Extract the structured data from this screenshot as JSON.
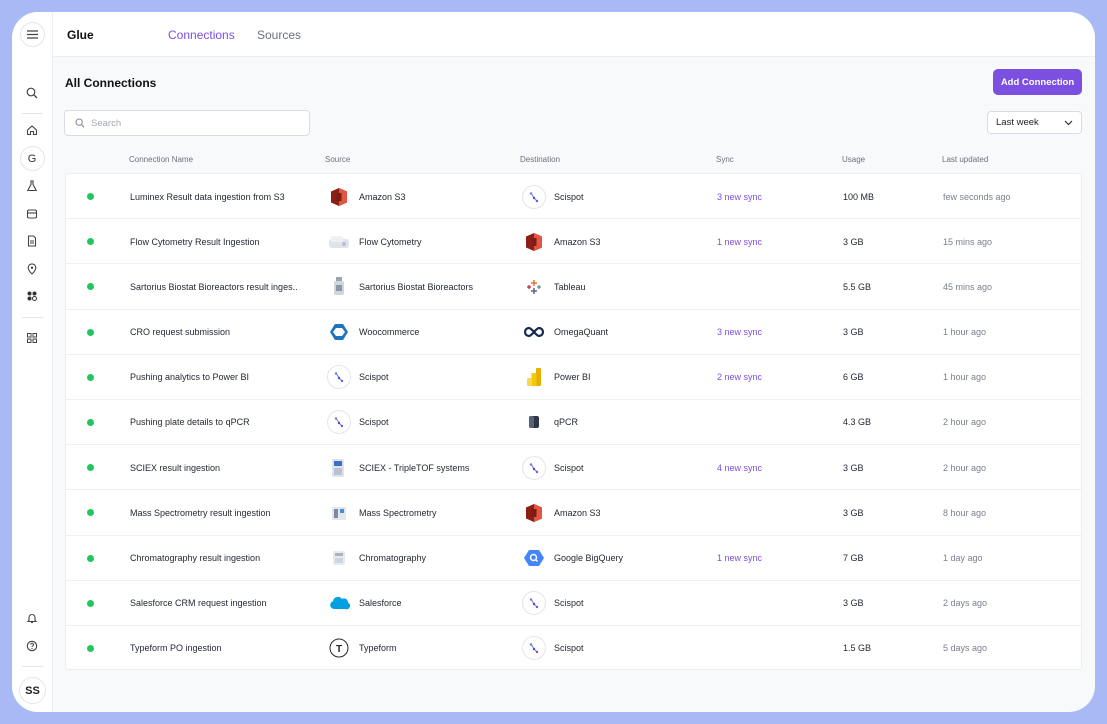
{
  "app": {
    "brand": "Glue"
  },
  "nav": {
    "tabs": [
      {
        "label": "Connections",
        "active": true
      },
      {
        "label": "Sources",
        "active": false
      }
    ]
  },
  "sidebar": {
    "workspace_letter": "G",
    "avatar_initials": "SS"
  },
  "main": {
    "title": "All Connections",
    "add_button_label": "Add Connection",
    "search_placeholder": "Search",
    "filter": {
      "selected": "Last week"
    }
  },
  "table": {
    "columns": [
      "Connection Name",
      "Source",
      "Destination",
      "Sync",
      "Usage",
      "Last updated"
    ],
    "rows": [
      {
        "name": "Luminex Result data ingestion from S3",
        "source": "Amazon S3",
        "source_icon": "amazon-s3",
        "destination": "Scispot",
        "destination_icon": "scispot",
        "sync": "3 new sync",
        "usage": "100 MB",
        "updated": "few seconds ago"
      },
      {
        "name": "Flow Cytometry Result Ingestion",
        "source": "Flow Cytometry",
        "source_icon": "flow-cytometry",
        "destination": "Amazon S3",
        "destination_icon": "amazon-s3",
        "sync": "1 new sync",
        "usage": "3 GB",
        "updated": "15 mins ago"
      },
      {
        "name": "Sartorius Biostat Bioreactors result inges..",
        "source": "Sartorius Biostat Bioreactors",
        "source_icon": "bioreactor",
        "destination": "Tableau",
        "destination_icon": "tableau",
        "sync": "",
        "usage": "5.5 GB",
        "updated": "45 mins ago"
      },
      {
        "name": "CRO request submission",
        "source": "Woocommerce",
        "source_icon": "woocommerce",
        "destination": "OmegaQuant",
        "destination_icon": "omegaquant",
        "sync": "3 new sync",
        "usage": "3 GB",
        "updated": "1 hour ago"
      },
      {
        "name": "Pushing analytics to Power BI",
        "source": "Scispot",
        "source_icon": "scispot",
        "destination": "Power BI",
        "destination_icon": "power-bi",
        "sync": "2 new sync",
        "usage": "6 GB",
        "updated": "1 hour ago"
      },
      {
        "name": "Pushing plate details to qPCR",
        "source": "Scispot",
        "source_icon": "scispot",
        "destination": "qPCR",
        "destination_icon": "qpcr",
        "sync": "",
        "usage": "4.3 GB",
        "updated": "2 hour ago"
      },
      {
        "name": "SCIEX result ingestion",
        "source": "SCIEX - TripleTOF systems",
        "source_icon": "sciex",
        "destination": "Scispot",
        "destination_icon": "scispot",
        "sync": "4 new sync",
        "usage": "3 GB",
        "updated": "2 hour ago"
      },
      {
        "name": "Mass Spectrometry result ingestion",
        "source": "Mass Spectrometry",
        "source_icon": "mass-spectrometry",
        "destination": "Amazon S3",
        "destination_icon": "amazon-s3",
        "sync": "",
        "usage": "3 GB",
        "updated": "8 hour ago"
      },
      {
        "name": "Chromatography result ingestion",
        "source": "Chromatography",
        "source_icon": "chromatography",
        "destination": "Google BigQuery",
        "destination_icon": "bigquery",
        "sync": "1 new sync",
        "usage": "7 GB",
        "updated": "1 day ago"
      },
      {
        "name": "Salesforce CRM request ingestion",
        "source": "Salesforce",
        "source_icon": "salesforce",
        "destination": "Scispot",
        "destination_icon": "scispot",
        "sync": "",
        "usage": "3 GB",
        "updated": "2 days ago"
      },
      {
        "name": "Typeform PO ingestion",
        "source": "Typeform",
        "source_icon": "typeform",
        "destination": "Scispot",
        "destination_icon": "scispot",
        "sync": "",
        "usage": "1.5 GB",
        "updated": "5 days ago"
      }
    ]
  },
  "colors": {
    "accent": "#7b4fe0",
    "status_active": "#22c55e",
    "frame": "#a9b9f5"
  }
}
